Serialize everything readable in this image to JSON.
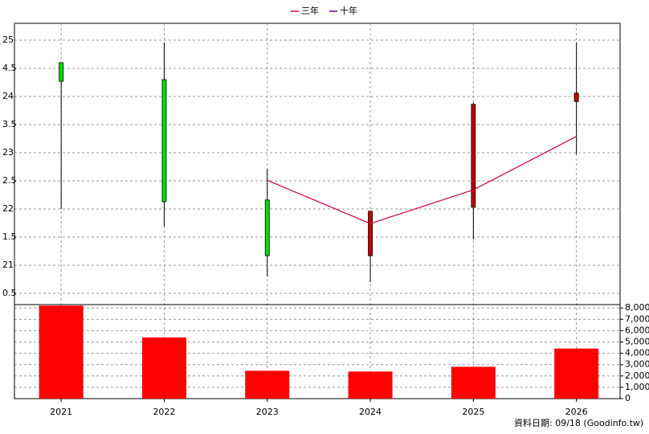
{
  "chart_data": {
    "type": "candlestick",
    "categories": [
      "2021",
      "2022",
      "2023",
      "2024",
      "2025",
      "2026"
    ],
    "open": [
      24.6,
      24.3,
      22.16,
      21.17,
      22.03,
      23.91
    ],
    "high": [
      24.6,
      24.96,
      22.71,
      21.97,
      23.89,
      24.96
    ],
    "low": [
      22.0,
      21.69,
      20.8,
      20.7,
      21.46,
      22.97
    ],
    "close": [
      24.27,
      22.13,
      21.17,
      21.96,
      23.86,
      24.06
    ],
    "up_color": "#c00000",
    "down_color": "#00e000",
    "series": [
      {
        "name": "三年",
        "color": "#cc0044",
        "values": [
          null,
          null,
          22.51,
          21.74,
          22.34,
          23.29
        ]
      },
      {
        "name": "十年",
        "color": "#660099",
        "values": [
          null,
          null,
          null,
          null,
          null,
          null
        ]
      }
    ],
    "ylim": [
      20.3,
      25.3
    ],
    "yticks": [
      {
        "value": 20.5,
        "label": "0.5"
      },
      21,
      {
        "value": 21.5,
        "label": "1.5"
      },
      22,
      {
        "value": 22.5,
        "label": "2.5"
      },
      23,
      {
        "value": 23.5,
        "label": "3.5"
      },
      24,
      {
        "value": 24.5,
        "label": "4.5"
      },
      25
    ],
    "volume": {
      "type": "bar",
      "color": "#ff0000",
      "values": [
        8210,
        5400,
        2460,
        2390,
        2810,
        4420
      ],
      "ylim": [
        0,
        8300
      ],
      "yticks": [
        0,
        {
          "value": 1000,
          "label": "1,000"
        },
        {
          "value": 2000,
          "label": "2,000"
        },
        {
          "value": 3000,
          "label": "3,000"
        },
        {
          "value": 4000,
          "label": "4,000"
        },
        {
          "value": 5000,
          "label": "5,000"
        },
        {
          "value": 6000,
          "label": "6,000"
        },
        {
          "value": 7000,
          "label": "7,000"
        },
        {
          "value": 8000,
          "label": "8,000"
        }
      ]
    },
    "grid": true,
    "footer": "資料日期: 09/18  (Goodinfo.tw)"
  }
}
